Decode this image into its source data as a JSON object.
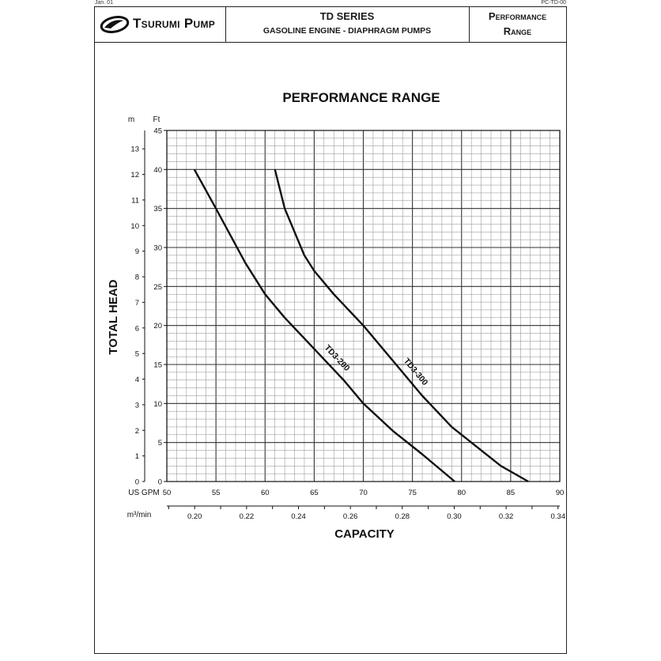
{
  "doc": {
    "date": "Jan. 01",
    "code": "PC-TD-00"
  },
  "header": {
    "brand": "Tsurumi Pump",
    "series_title": "TD SERIES",
    "series_subtitle": "GASOLINE ENGINE - DIAPHRAGM PUMPS",
    "range_line1": "Performance",
    "range_line2": "Range"
  },
  "colors": {
    "ink": "#111111",
    "grid_major": "#333333",
    "grid_minor": "#8a8a8a"
  },
  "chart_data": {
    "type": "line",
    "title": "PERFORMANCE RANGE",
    "ylabel": "TOTAL HEAD",
    "xlabel": "CAPACITY",
    "y_unit_left": "m",
    "y_unit_right": "Ft",
    "x_unit_primary": "US GPM",
    "x_unit_secondary": "m³/min",
    "xlim": [
      50,
      90
    ],
    "ylim": [
      0,
      45
    ],
    "x_ticks": [
      "50",
      "55",
      "60",
      "65",
      "70",
      "75",
      "80",
      "85",
      "90"
    ],
    "y_ticks_ft": [
      "0",
      "5",
      "10",
      "15",
      "20",
      "25",
      "30",
      "35",
      "40",
      "45"
    ],
    "y_ticks_m": [
      "0",
      "1",
      "2",
      "3",
      "4",
      "5",
      "6",
      "7",
      "8",
      "9",
      "10",
      "11",
      "12",
      "13"
    ],
    "x_ticks_m3min": [
      "0.20",
      "0.22",
      "0.24",
      "0.26",
      "0.28",
      "0.30",
      "0.32",
      "0.34"
    ],
    "grid": true,
    "series": [
      {
        "name": "TD3-200",
        "x": [
          52.8,
          55,
          58,
          60,
          62,
          65,
          68,
          70,
          73,
          76,
          79.3
        ],
        "y": [
          40,
          35,
          28,
          24,
          21,
          17,
          13,
          10,
          6.5,
          3.5,
          0
        ]
      },
      {
        "name": "TD3-300",
        "x": [
          61,
          62,
          64,
          65,
          67,
          70,
          73,
          76,
          79,
          81,
          84,
          86.8
        ],
        "y": [
          40,
          35,
          29,
          27,
          24,
          20,
          15.5,
          11,
          7,
          5,
          2,
          0
        ]
      }
    ]
  }
}
